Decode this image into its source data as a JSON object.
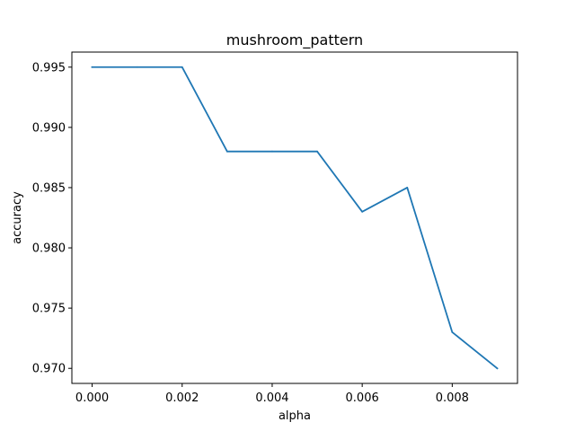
{
  "chart_data": {
    "type": "line",
    "title": "mushroom_pattern",
    "xlabel": "alpha",
    "ylabel": "accuracy",
    "xlim": [
      -0.00045,
      0.00945
    ],
    "ylim": [
      0.96875,
      0.99625
    ],
    "xticks": [
      0.0,
      0.002,
      0.004,
      0.006,
      0.008
    ],
    "xtick_labels": [
      "0.000",
      "0.002",
      "0.004",
      "0.006",
      "0.008"
    ],
    "yticks": [
      0.97,
      0.975,
      0.98,
      0.985,
      0.99,
      0.995
    ],
    "ytick_labels": [
      "0.970",
      "0.975",
      "0.980",
      "0.985",
      "0.990",
      "0.995"
    ],
    "grid": false,
    "series": [
      {
        "color": "#1f77b4",
        "x": [
          0.0,
          0.001,
          0.002,
          0.003,
          0.004,
          0.005,
          0.006,
          0.007,
          0.008,
          0.009
        ],
        "y": [
          0.995,
          0.995,
          0.995,
          0.988,
          0.988,
          0.988,
          0.983,
          0.985,
          0.973,
          0.97
        ]
      }
    ]
  }
}
